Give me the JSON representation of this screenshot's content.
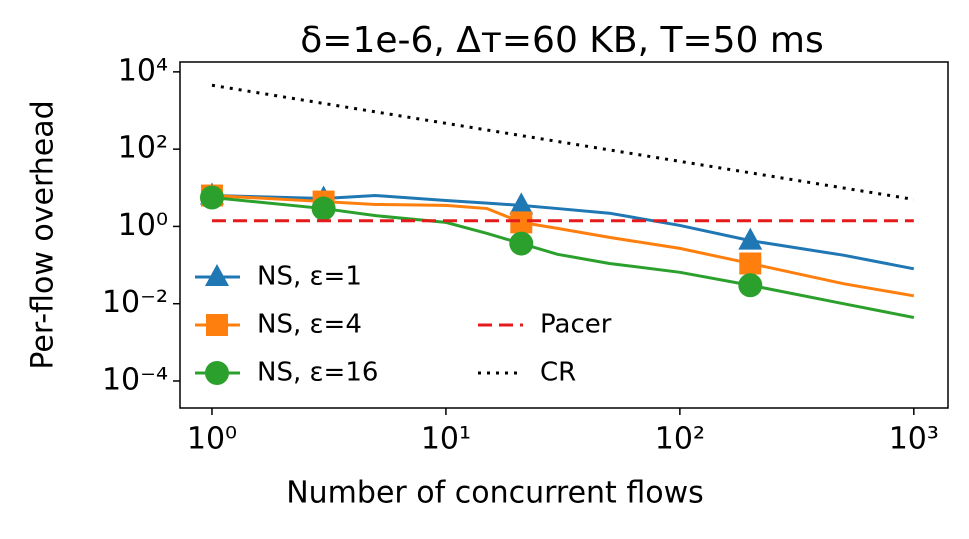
{
  "chart_data": {
    "type": "line",
    "title": "δ=1e-6, Δᴛ=60 KB, T=50 ms",
    "x_label": "Number of concurrent flows",
    "y_label": "Per-flow overhead",
    "x_scale": "log",
    "y_scale": "log",
    "xlim": [
      0.73,
      1400
    ],
    "ylim": [
      2e-05,
      18000
    ],
    "xticks": [
      {
        "value": 1,
        "label": "10⁰"
      },
      {
        "value": 10,
        "label": "10¹"
      },
      {
        "value": 100,
        "label": "10²"
      },
      {
        "value": 1000,
        "label": "10³"
      }
    ],
    "yticks": [
      {
        "value": 0.0001,
        "label": "10⁻⁴"
      },
      {
        "value": 0.01,
        "label": "10⁻²"
      },
      {
        "value": 1,
        "label": "10⁰"
      },
      {
        "value": 100,
        "label": "10²"
      },
      {
        "value": 10000,
        "label": "10⁴"
      }
    ],
    "legend_position": "lower left",
    "series": [
      {
        "name": "NS, ε=1",
        "color": "#1f77b4",
        "marker": "triangle",
        "markevery": [
          0,
          1,
          5,
          9
        ],
        "x": [
          1,
          3,
          5,
          10,
          15,
          21,
          30,
          50,
          100,
          200,
          500,
          1000
        ],
        "values": [
          6.3,
          5.3,
          6.3,
          4.7,
          4,
          3.5,
          2.9,
          2.2,
          1.06,
          0.43,
          0.18,
          0.08
        ]
      },
      {
        "name": "NS, ε=4",
        "color": "#ff7f0e",
        "marker": "square",
        "markevery": [
          0,
          1,
          5,
          9
        ],
        "x": [
          1,
          3,
          5,
          10,
          15,
          21,
          30,
          50,
          100,
          200,
          500,
          1000
        ],
        "values": [
          6.3,
          4.4,
          3.7,
          3.5,
          2.9,
          1.27,
          0.89,
          0.52,
          0.27,
          0.11,
          0.033,
          0.016
        ]
      },
      {
        "name": "NS, ε=16",
        "color": "#2ca02c",
        "marker": "circle",
        "markevery": [
          0,
          1,
          5,
          9
        ],
        "x": [
          1,
          3,
          5,
          10,
          15,
          21,
          30,
          50,
          100,
          200,
          500,
          1000
        ],
        "values": [
          5.6,
          2.9,
          1.9,
          1.27,
          0.66,
          0.36,
          0.19,
          0.11,
          0.065,
          0.03,
          0.01,
          0.0044
        ]
      },
      {
        "name": "Pacer",
        "color": "#e41a1c",
        "dash": "dashed",
        "x": [
          1,
          1000
        ],
        "values": [
          1.4,
          1.4
        ]
      },
      {
        "name": "CR",
        "color": "#000000",
        "dash": "dotted",
        "x": [
          1,
          1000
        ],
        "values": [
          4500,
          5
        ]
      }
    ]
  }
}
